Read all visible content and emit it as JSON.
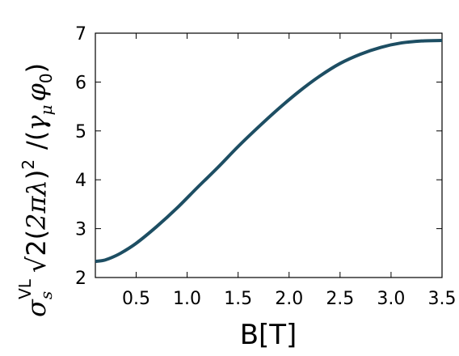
{
  "chart_data": {
    "type": "line",
    "title": "",
    "xlabel": "B[T]",
    "ylabel": "σ_s^VL √2 (2πλ)² / (γ_μ φ_0)",
    "ylabel_parts": {
      "sigma": "σ",
      "sub_s": "s",
      "sup_vl": "VL",
      "sqrt": "√",
      "two": "2",
      "open": "(",
      "twopi": "2π",
      "lambda": "λ",
      "close": ")",
      "square": "2",
      "slash": "/(",
      "gamma": "γ",
      "sub_mu": "μ",
      "phi": "φ",
      "sub_0": "0",
      "end": ")"
    },
    "xlim": [
      0.1,
      3.5
    ],
    "ylim": [
      2.0,
      7.0
    ],
    "xticks": [
      "0.5",
      "1.0",
      "1.5",
      "2.0",
      "2.5",
      "3.0",
      "3.5"
    ],
    "yticks": [
      "2",
      "3",
      "4",
      "5",
      "6",
      "7"
    ],
    "grid": false,
    "series": [
      {
        "color": "#1d4e63",
        "x": [
          0.1,
          0.18,
          0.25,
          0.35,
          0.5,
          0.7,
          0.9,
          1.1,
          1.3,
          1.5,
          1.7,
          1.9,
          2.1,
          2.3,
          2.5,
          2.7,
          2.9,
          3.1,
          3.3,
          3.5
        ],
        "y": [
          2.33,
          2.35,
          2.4,
          2.5,
          2.7,
          3.04,
          3.42,
          3.84,
          4.25,
          4.68,
          5.08,
          5.46,
          5.81,
          6.12,
          6.38,
          6.57,
          6.71,
          6.8,
          6.84,
          6.85
        ]
      }
    ]
  }
}
